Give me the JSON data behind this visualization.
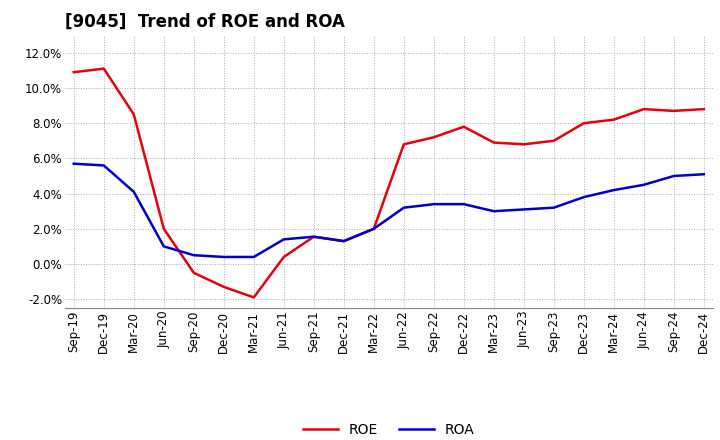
{
  "title": "[9045]  Trend of ROE and ROA",
  "labels": [
    "Sep-19",
    "Dec-19",
    "Mar-20",
    "Jun-20",
    "Sep-20",
    "Dec-20",
    "Mar-21",
    "Jun-21",
    "Sep-21",
    "Dec-21",
    "Mar-22",
    "Jun-22",
    "Sep-22",
    "Dec-22",
    "Mar-23",
    "Jun-23",
    "Sep-23",
    "Dec-23",
    "Mar-24",
    "Jun-24",
    "Sep-24",
    "Dec-24"
  ],
  "ROE": [
    10.9,
    11.1,
    8.5,
    2.0,
    -0.5,
    -1.3,
    -1.9,
    0.4,
    1.55,
    1.3,
    2.0,
    6.8,
    7.2,
    7.8,
    6.9,
    6.8,
    7.0,
    8.0,
    8.2,
    8.8,
    8.7,
    8.8
  ],
  "ROA": [
    5.7,
    5.6,
    4.1,
    1.0,
    0.5,
    0.4,
    0.4,
    1.4,
    1.55,
    1.3,
    2.0,
    3.2,
    3.4,
    3.4,
    3.0,
    3.1,
    3.2,
    3.8,
    4.2,
    4.5,
    5.0,
    5.1
  ],
  "ROE_color": "#e8000d",
  "ROA_color": "#0000cc",
  "background_color": "#ffffff",
  "plot_bg_color": "#ffffff",
  "grid_color": "#aaaaaa",
  "ylim": [
    -2.5,
    13.0
  ],
  "yticks": [
    -2.0,
    0.0,
    2.0,
    4.0,
    6.0,
    8.0,
    10.0,
    12.0
  ],
  "title_fontsize": 12,
  "legend_fontsize": 10,
  "tick_fontsize": 8.5,
  "line_width": 1.8
}
